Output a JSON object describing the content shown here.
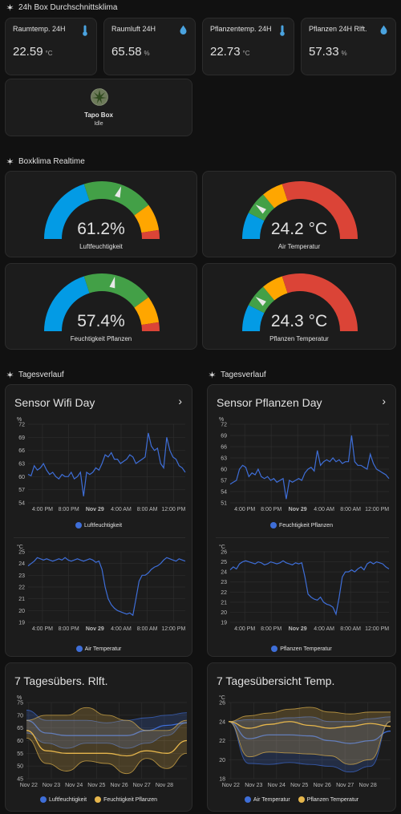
{
  "colors": {
    "blue": "#3e6ed8",
    "yellow": "#e6b64c",
    "gauge_blue": "#039be5",
    "gauge_green": "#43a047",
    "gauge_yellow": "#ffa600",
    "gauge_red": "#db4437",
    "grid": "#2d2d2d"
  },
  "sections": {
    "avg": "24h Box Durchschnittsklima",
    "realtime": "Boxklima Realtime",
    "day_left": "Tagesverlauf",
    "day_right": "Tagesverlauf"
  },
  "stats": [
    {
      "name": "Raumtemp. 24H",
      "value": "22.59",
      "unit": "°C",
      "icon": "thermometer-icon"
    },
    {
      "name": "Raumluft 24H",
      "value": "65.58",
      "unit": "%",
      "icon": "water-drop-icon"
    },
    {
      "name": "Pflanzentemp. 24H",
      "value": "22.73",
      "unit": "°C",
      "icon": "thermometer-icon"
    },
    {
      "name": "Pflanzen 24H Rlft.",
      "value": "57.33",
      "unit": "%",
      "icon": "water-drop-icon"
    }
  ],
  "tapo": {
    "name": "Tapo Box",
    "state": "Idle"
  },
  "gauges": [
    {
      "value": "61.2%",
      "label": "Luftfeuchtigkeit",
      "level": 0.612,
      "kind": "hum"
    },
    {
      "value": "24.2 °C",
      "label": "Air Temperatur",
      "level": 0.21,
      "kind": "temp"
    },
    {
      "value": "57.4%",
      "label": "Feuchtigkeit Pflanzen",
      "level": 0.574,
      "kind": "hum"
    },
    {
      "value": "24.3 °C",
      "label": "Pflanzen Temperatur",
      "level": 0.21,
      "kind": "temp"
    }
  ],
  "cards": {
    "wifi_title": "Sensor Wifi Day",
    "pflanzen_title": "Sensor Pflanzen Day",
    "week_hum_title": "7 Tagesübers. Rlft.",
    "week_temp_title": "7 Tagesübersicht Temp."
  },
  "chart_data": [
    {
      "type": "line",
      "name": "wifi_humidity",
      "unit": "%",
      "ylim": [
        54,
        72
      ],
      "yticks": [
        "72",
        "69",
        "66",
        "63",
        "60",
        "57",
        "54"
      ],
      "xticks": [
        "4:00 PM",
        "8:00 PM",
        "Nov 29",
        "4:00 AM",
        "8:00 AM",
        "12:00 PM"
      ],
      "series": [
        {
          "name": "Luftfeuchtigkeit",
          "color": "#3e6ed8",
          "values": [
            60.5,
            60.2,
            62.5,
            61.5,
            62,
            63,
            61.5,
            60.5,
            61,
            60,
            59.5,
            60.5,
            60,
            60,
            61,
            59.5,
            60,
            61,
            55.5,
            61,
            60.5,
            61,
            62,
            61.5,
            63,
            65,
            64.5,
            65.5,
            64,
            64,
            63,
            63.5,
            64,
            65,
            64.5,
            63,
            63.5,
            64,
            64.5,
            70,
            67,
            66,
            66.5,
            63,
            62,
            69,
            66,
            64.5,
            64,
            62.5,
            62,
            61
          ]
        }
      ]
    },
    {
      "type": "line",
      "name": "wifi_temperature",
      "unit": "°C",
      "ylim": [
        19,
        25
      ],
      "yticks": [
        "25",
        "24",
        "23",
        "22",
        "21",
        "20",
        "19"
      ],
      "xticks": [
        "4:00 PM",
        "8:00 PM",
        "Nov 29",
        "4:00 AM",
        "8:00 AM",
        "12:00 PM"
      ],
      "series": [
        {
          "name": "Air Temperatur",
          "color": "#3e6ed8",
          "values": [
            23.8,
            24,
            24.2,
            24.5,
            24.4,
            24.3,
            24.4,
            24.3,
            24.2,
            24.3,
            24.4,
            24.3,
            24.5,
            24.3,
            24.2,
            24.3,
            24.4,
            24.3,
            24.2,
            24.3,
            24.4,
            24.3,
            24.1,
            24.2,
            23.5,
            22,
            21,
            20.5,
            20.2,
            20,
            19.9,
            19.8,
            19.7,
            19.8,
            19.6,
            21,
            22.5,
            23,
            23,
            23.2,
            23.5,
            23.7,
            23.8,
            24,
            24.3,
            24.5,
            24.4,
            24.3,
            24.2,
            24.4,
            24.3,
            24.2
          ]
        }
      ]
    },
    {
      "type": "line",
      "name": "pflanzen_humidity",
      "unit": "%",
      "ylim": [
        51,
        72
      ],
      "yticks": [
        "72",
        "69",
        "66",
        "63",
        "60",
        "57",
        "54",
        "51"
      ],
      "xticks": [
        "4:00 PM",
        "8:00 PM",
        "Nov 29",
        "4:00 AM",
        "8:00 AM",
        "12:00 PM"
      ],
      "series": [
        {
          "name": "Feuchtigkeit Pflanzen",
          "color": "#3e6ed8",
          "values": [
            56,
            56.5,
            57,
            60,
            61,
            60.5,
            58,
            59,
            58.5,
            60,
            58,
            57.5,
            58,
            57,
            57.5,
            56.5,
            57,
            57.5,
            52,
            57,
            56.5,
            57,
            57.5,
            57,
            59,
            60,
            60.5,
            59.5,
            65,
            61,
            62,
            62.5,
            62,
            63,
            62,
            62.5,
            61.5,
            62,
            62,
            69,
            62,
            61,
            61,
            60.5,
            60,
            64,
            61.5,
            60,
            59.5,
            59,
            58.5,
            57.5
          ]
        }
      ]
    },
    {
      "type": "line",
      "name": "pflanzen_temperature",
      "unit": "°C",
      "ylim": [
        19,
        26
      ],
      "yticks": [
        "26",
        "25",
        "24",
        "23",
        "22",
        "21",
        "20",
        "19"
      ],
      "xticks": [
        "4:00 PM",
        "8:00 PM",
        "Nov 29",
        "4:00 AM",
        "8:00 AM",
        "12:00 PM"
      ],
      "series": [
        {
          "name": "Pflanzen Temperatur",
          "color": "#3e6ed8",
          "values": [
            24.2,
            24.5,
            24.3,
            24.8,
            25,
            25.1,
            25,
            24.9,
            24.8,
            25,
            24.9,
            24.7,
            24.8,
            25,
            24.9,
            24.8,
            24.9,
            25.1,
            24.9,
            24.8,
            24.7,
            24.9,
            24.8,
            24.9,
            23.5,
            21.8,
            21.5,
            21.3,
            21.2,
            21.5,
            21,
            20.8,
            20.7,
            20.5,
            19.8,
            21.5,
            23.5,
            24,
            24,
            24.2,
            24,
            24.3,
            24.5,
            24.2,
            24.8,
            25,
            24.8,
            25,
            24.9,
            24.8,
            24.5,
            24.3
          ]
        }
      ]
    },
    {
      "type": "area",
      "name": "week_humidity",
      "unit": "%",
      "ylim": [
        45,
        75
      ],
      "yticks": [
        "75",
        "70",
        "65",
        "60",
        "55",
        "50",
        "45"
      ],
      "xticks": [
        "Nov 22",
        "Nov 23",
        "Nov 24",
        "Nov 25",
        "Nov 26",
        "Nov 27",
        "Nov 28"
      ],
      "series": [
        {
          "name": "Luftfeuchtigkeit",
          "color": "#3e6ed8",
          "mean": [
            68,
            63,
            62,
            62,
            62,
            62,
            64,
            66,
            67
          ],
          "min": [
            63,
            59,
            57,
            59,
            59,
            57,
            59,
            62,
            67
          ],
          "max": [
            72,
            68,
            68,
            68,
            67,
            68,
            69,
            70,
            71
          ]
        },
        {
          "name": "Feuchtigkeit Pflanzen",
          "color": "#e6b64c",
          "mean": [
            64,
            56,
            55,
            55,
            55,
            54,
            56,
            55,
            60
          ],
          "min": [
            61,
            51,
            48,
            52,
            51,
            47,
            53,
            49,
            55
          ],
          "max": [
            68,
            70,
            70,
            73,
            70,
            68,
            64,
            64,
            68
          ]
        }
      ]
    },
    {
      "type": "area",
      "name": "week_temperature",
      "unit": "°C",
      "ylim": [
        18,
        26
      ],
      "yticks": [
        "26",
        "24",
        "22",
        "20",
        "18"
      ],
      "xticks": [
        "Nov 22",
        "Nov 23",
        "Nov 24",
        "Nov 25",
        "Nov 26",
        "Nov 27",
        "Nov 28"
      ],
      "series": [
        {
          "name": "Air Temperatur",
          "color": "#3e6ed8",
          "mean": [
            24,
            22.2,
            22.6,
            22.6,
            22.5,
            22,
            21.7,
            22,
            23
          ],
          "min": [
            24,
            19.6,
            19.5,
            19.7,
            19.5,
            19.3,
            18.7,
            19.3,
            24
          ],
          "max": [
            24,
            24.2,
            24.2,
            24.4,
            24.5,
            24,
            24,
            24.3,
            24.5
          ]
        },
        {
          "name": "Pflanzen Temperatur",
          "color": "#e6b64c",
          "mean": [
            24,
            23.3,
            23.7,
            24,
            23.6,
            23.3,
            23.5,
            23.8,
            23.5
          ],
          "min": [
            24,
            20.3,
            20.8,
            20.7,
            20.6,
            20.4,
            19.5,
            20,
            24
          ],
          "max": [
            24,
            24.6,
            24.9,
            25.3,
            25.5,
            25,
            24.8,
            25,
            25
          ]
        }
      ]
    }
  ]
}
